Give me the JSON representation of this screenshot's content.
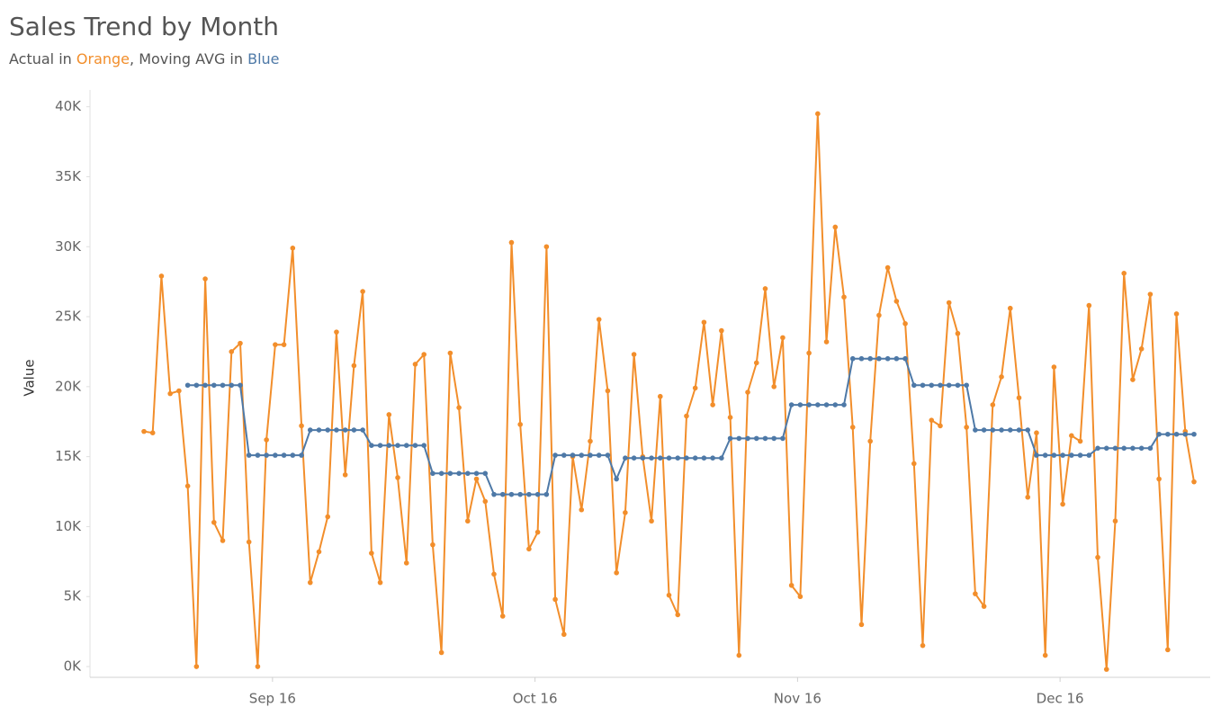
{
  "chart_data": {
    "type": "line",
    "title": "Sales Trend by Month",
    "subtitle": [
      "Actual in ",
      "Orange",
      ", Moving AVG in ",
      "Blue"
    ],
    "y_label": "Value",
    "categories": [
      null,
      null,
      null,
      null,
      null,
      null,
      null,
      null,
      null,
      null,
      null,
      null,
      null,
      null,
      null,
      "Sep 16",
      null,
      null,
      null,
      null,
      null,
      null,
      null,
      null,
      null,
      null,
      null,
      null,
      null,
      null,
      null,
      null,
      null,
      null,
      null,
      null,
      null,
      null,
      null,
      null,
      null,
      null,
      null,
      null,
      null,
      "Oct 16",
      null,
      null,
      null,
      null,
      null,
      null,
      null,
      null,
      null,
      null,
      null,
      null,
      null,
      null,
      null,
      null,
      null,
      null,
      null,
      null,
      null,
      null,
      null,
      null,
      null,
      null,
      null,
      null,
      null,
      "Nov 16",
      null,
      null,
      null,
      null,
      null,
      null,
      null,
      null,
      null,
      null,
      null,
      null,
      null,
      null,
      null,
      null,
      null,
      null,
      null,
      null,
      null,
      null,
      null,
      null,
      null,
      null,
      null,
      null,
      null,
      "Dec 16",
      null,
      null,
      null,
      null,
      null,
      null,
      null,
      null,
      null,
      null,
      null,
      null,
      null,
      null,
      null
    ],
    "series": [
      {
        "color": "#f28e2b",
        "values": [
          16800,
          16700,
          27900,
          19500,
          19700,
          12900,
          0,
          27700,
          10300,
          9000,
          22500,
          23100,
          8900,
          0,
          16200,
          23000,
          23000,
          29900,
          17200,
          6000,
          8200,
          10700,
          23900,
          13700,
          21500,
          26800,
          8100,
          6000,
          18000,
          13500,
          7400,
          21600,
          22300,
          8700,
          1000,
          22400,
          18500,
          10400,
          13400,
          11800,
          6600,
          3600,
          30300,
          17300,
          8400,
          9600,
          30000,
          4800,
          2300,
          15000,
          11200,
          16100,
          24800,
          19700,
          6700,
          11000,
          22300,
          15000,
          10400,
          19300,
          5100,
          3700,
          17900,
          19900,
          24600,
          18700,
          24000,
          17800,
          800,
          19600,
          21700,
          27000,
          20000,
          23500,
          5800,
          5000,
          22400,
          39500,
          23200,
          31400,
          26400,
          17100,
          3000,
          16100,
          25100,
          28500,
          26100,
          24500,
          14500,
          1500,
          17600,
          17200,
          26000,
          23800,
          17100,
          5200,
          4300,
          18700,
          20700,
          25600,
          19200,
          12100,
          16700,
          800,
          21400,
          11600,
          16500,
          16100,
          25800,
          7800,
          -200,
          10400,
          28100,
          20500,
          22700,
          26600,
          13400,
          1200,
          25200,
          16800,
          13200
        ]
      },
      {
        "color": "#4e79a7",
        "values": [
          null,
          null,
          null,
          null,
          null,
          20100,
          20100,
          20100,
          20100,
          20100,
          20100,
          20100,
          15100,
          15100,
          15100,
          15100,
          15100,
          15100,
          15100,
          16900,
          16900,
          16900,
          16900,
          16900,
          16900,
          16900,
          15800,
          15800,
          15800,
          15800,
          15800,
          15800,
          15800,
          13800,
          13800,
          13800,
          13800,
          13800,
          13800,
          13800,
          12300,
          12300,
          12300,
          12300,
          12300,
          12300,
          12300,
          15100,
          15100,
          15100,
          15100,
          15100,
          15100,
          15100,
          13400,
          14900,
          14900,
          14900,
          14900,
          14900,
          14900,
          14900,
          14900,
          14900,
          14900,
          14900,
          14900,
          16300,
          16300,
          16300,
          16300,
          16300,
          16300,
          16300,
          18700,
          18700,
          18700,
          18700,
          18700,
          18700,
          18700,
          22000,
          22000,
          22000,
          22000,
          22000,
          22000,
          22000,
          20100,
          20100,
          20100,
          20100,
          20100,
          20100,
          20100,
          16900,
          16900,
          16900,
          16900,
          16900,
          16900,
          16900,
          15100,
          15100,
          15100,
          15100,
          15100,
          15100,
          15100,
          15600,
          15600,
          15600,
          15600,
          15600,
          15600,
          15600,
          16600,
          16600,
          16600,
          16600,
          16600
        ]
      }
    ],
    "ylim": [
      -770,
      41200
    ],
    "yticks": [
      {
        "value": 0,
        "label": "0K"
      },
      {
        "value": 5000,
        "label": "5K"
      },
      {
        "value": 10000,
        "label": "10K"
      },
      {
        "value": 15000,
        "label": "15K"
      },
      {
        "value": 20000,
        "label": "20K"
      },
      {
        "value": 25000,
        "label": "25K"
      },
      {
        "value": 30000,
        "label": "30K"
      },
      {
        "value": 35000,
        "label": "35K"
      },
      {
        "value": 40000,
        "label": "40K"
      }
    ],
    "grid": false
  }
}
